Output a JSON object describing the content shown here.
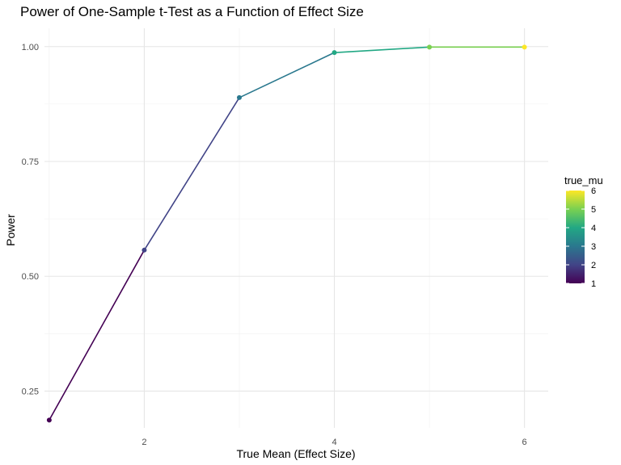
{
  "chart_data": {
    "type": "line",
    "title": "Power of One-Sample t-Test as a Function of Effect Size",
    "xlabel": "True Mean (Effect Size)",
    "ylabel": "Power",
    "x": [
      1,
      2,
      3,
      4,
      5,
      6
    ],
    "series": [
      {
        "values": [
          0.187,
          0.557,
          0.889,
          0.987,
          0.999,
          0.999
        ]
      }
    ],
    "xlim": [
      0.95,
      6.25
    ],
    "ylim": [
      0.17,
      1.04
    ],
    "xticks": [
      2,
      4,
      6
    ],
    "xtick_labels": [
      "2",
      "4",
      "6"
    ],
    "yticks": [
      0.25,
      0.5,
      0.75,
      1.0
    ],
    "ytick_labels": [
      "0.25",
      "0.50",
      "0.75",
      "1.00"
    ],
    "grid": true,
    "color_scale": "viridis",
    "legend": {
      "title": "true_mu",
      "position": "right",
      "range": [
        1,
        6
      ],
      "ticks": [
        1,
        2,
        3,
        4,
        5,
        6
      ],
      "tick_labels": [
        "1",
        "2",
        "3",
        "4",
        "5",
        "6"
      ]
    }
  }
}
